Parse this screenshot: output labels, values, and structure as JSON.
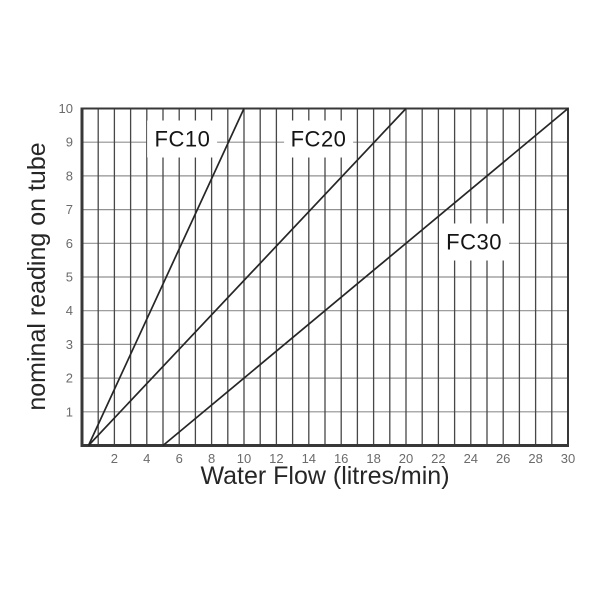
{
  "chart_data": {
    "type": "line",
    "title": "",
    "xlabel": "Water Flow (litres/min)",
    "ylabel": "nominal reading on tube",
    "xlim": [
      0,
      30
    ],
    "ylim": [
      0,
      10
    ],
    "x_ticks": [
      2,
      4,
      6,
      8,
      10,
      12,
      14,
      16,
      18,
      20,
      22,
      24,
      26,
      28,
      30
    ],
    "y_ticks": [
      1,
      2,
      3,
      4,
      5,
      6,
      7,
      8,
      9,
      10
    ],
    "grid": {
      "on": true,
      "vertical_step": 1,
      "horizontal_step": 1
    },
    "legend_position": "inline-labels",
    "series": [
      {
        "name": "FC10",
        "points": [
          [
            0.4,
            0
          ],
          [
            10,
            10
          ]
        ],
        "label_pos": {
          "x": 6.2,
          "y": 9.1
        }
      },
      {
        "name": "FC20",
        "points": [
          [
            0.4,
            0
          ],
          [
            20,
            10
          ]
        ],
        "label_pos": {
          "x": 14.6,
          "y": 9.1
        }
      },
      {
        "name": "FC30",
        "points": [
          [
            5,
            0
          ],
          [
            30,
            10
          ]
        ],
        "label_pos": {
          "x": 24.2,
          "y": 6.05
        }
      }
    ],
    "colors": {
      "background": "#ffffff",
      "series_line": "#262626",
      "vertical_grid": "#474747",
      "horizontal_grid": "#919191",
      "border": "#383838",
      "tick_text": "#6b6b6b",
      "axis_title_text": "#262626",
      "series_label_text": "#141414",
      "series_label_bg": "#ffffff"
    }
  }
}
